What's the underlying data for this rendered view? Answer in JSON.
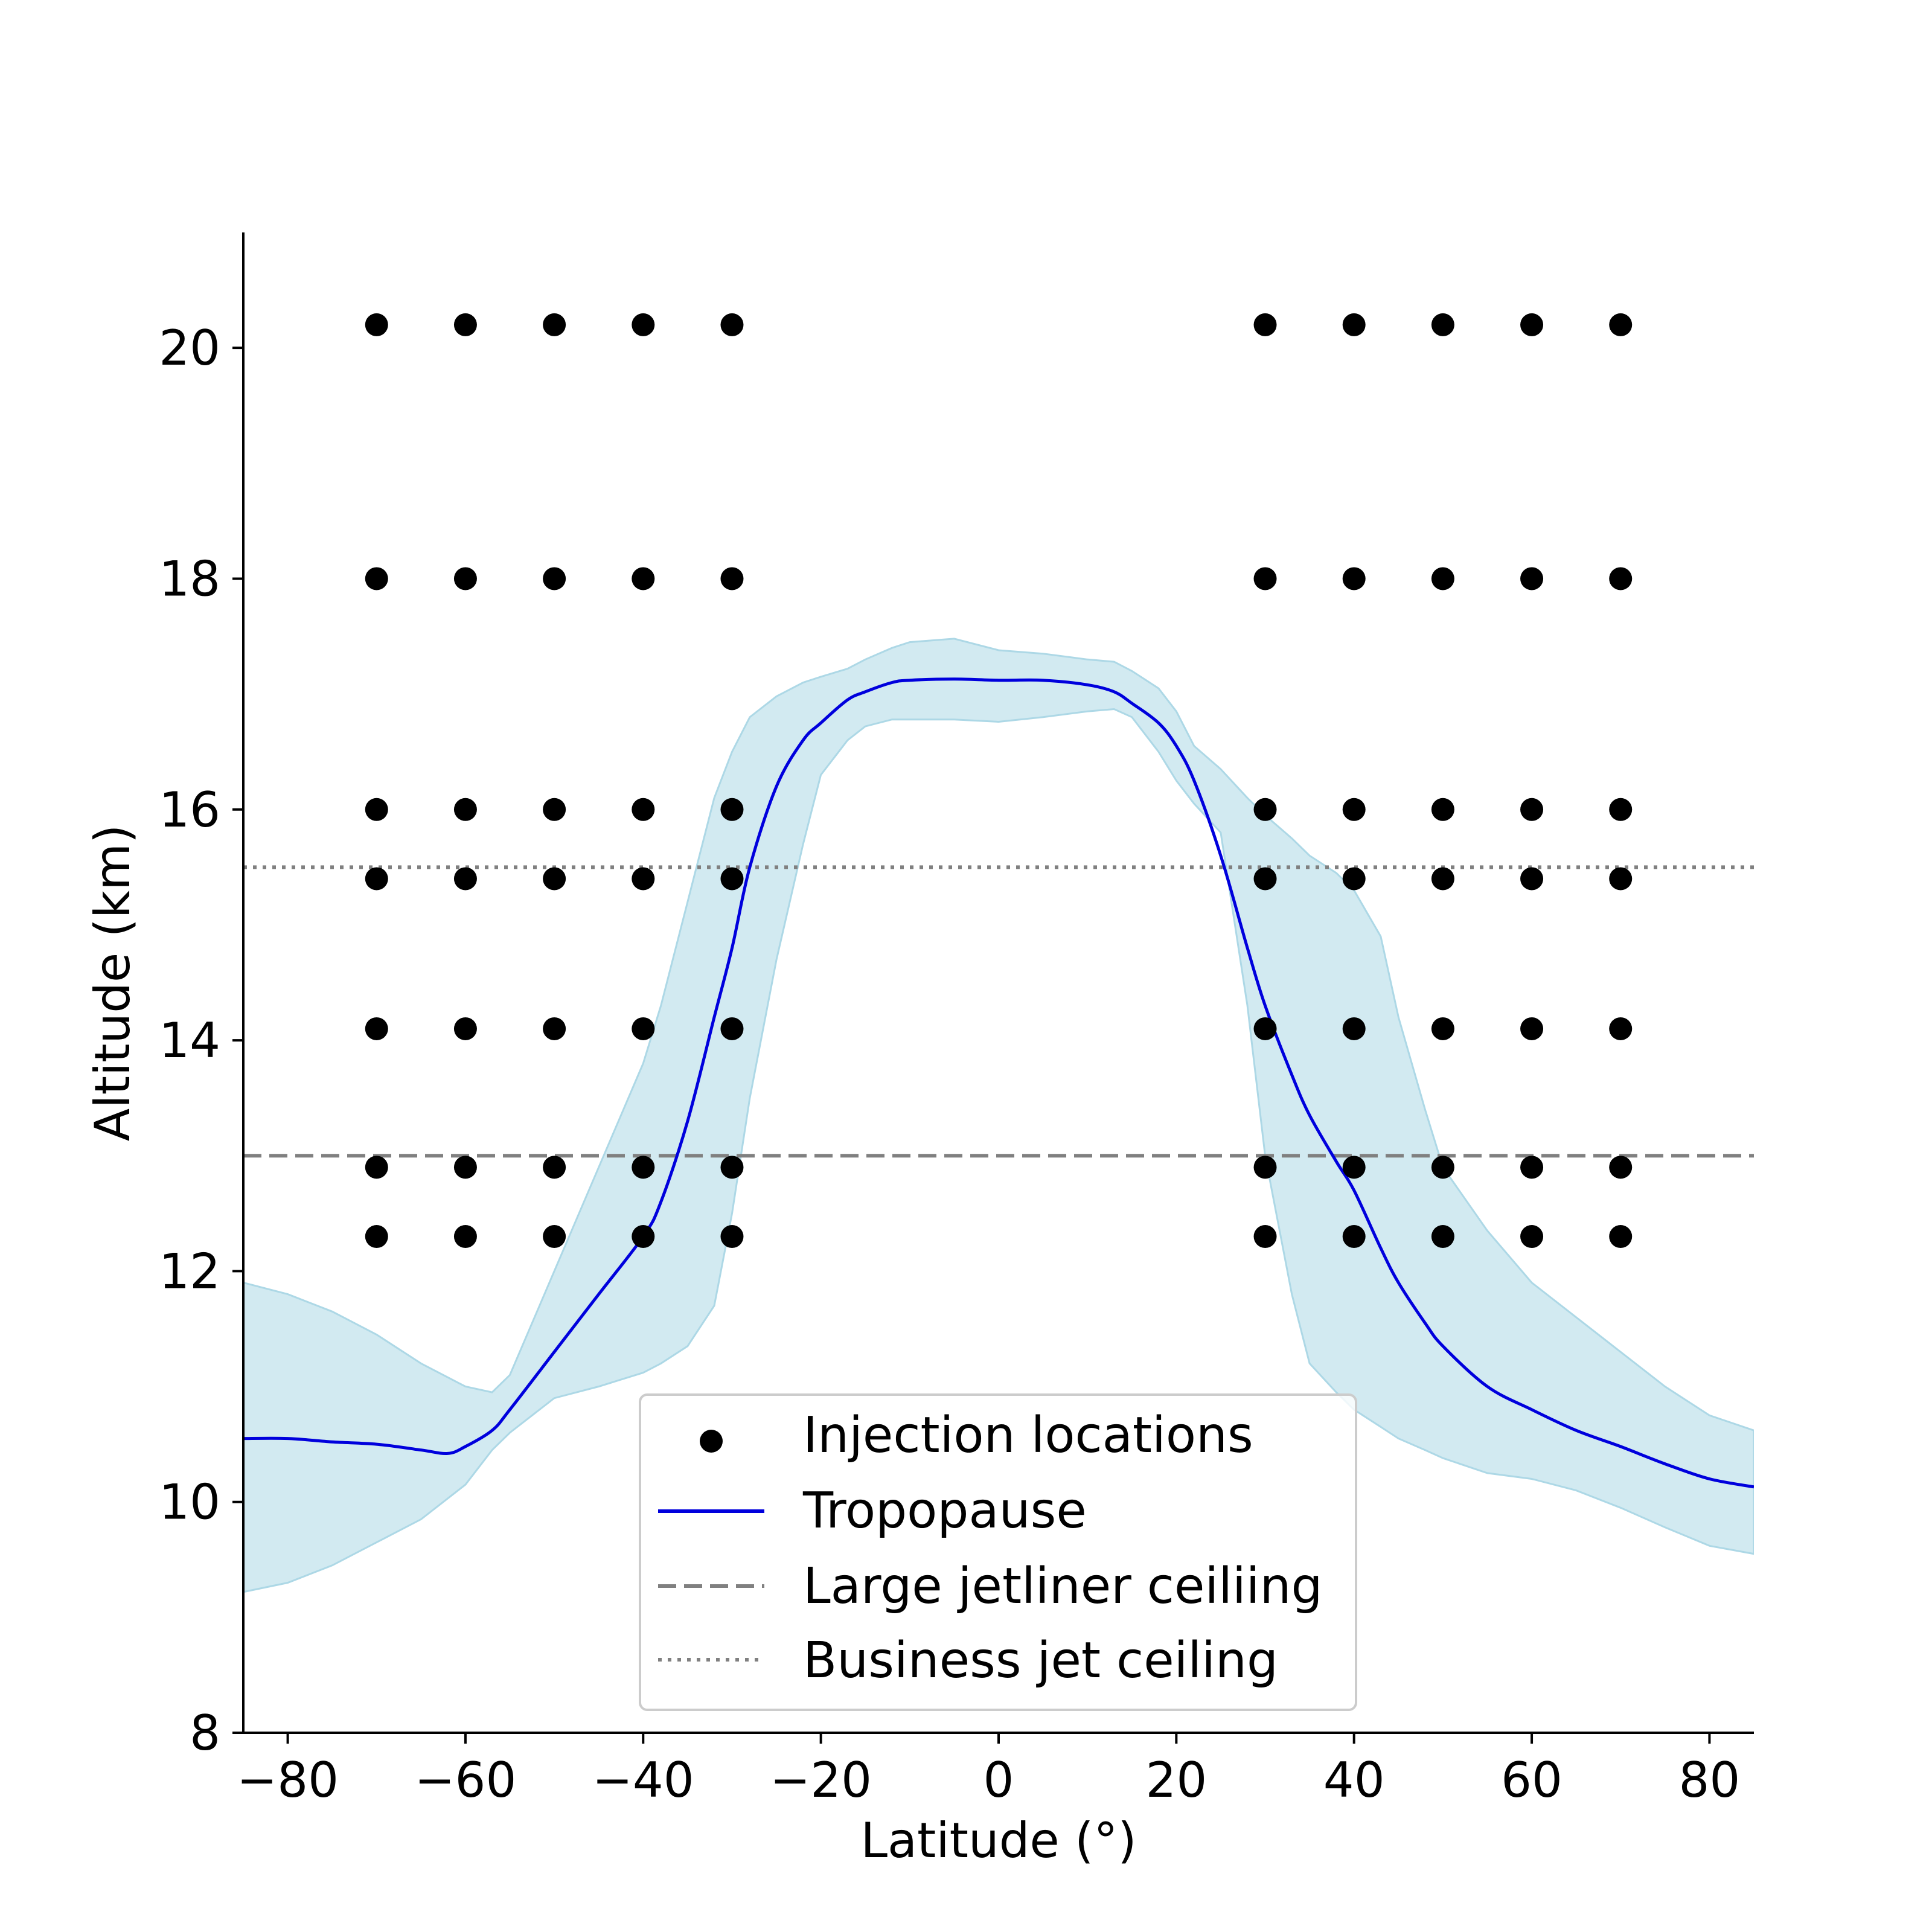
{
  "chart_data": {
    "type": "scatter",
    "xlabel": "Latitude (°)",
    "ylabel": "Altitude (km)",
    "xlim": [
      -85,
      85
    ],
    "ylim": [
      8,
      21
    ],
    "xticks": [
      -80,
      -60,
      -40,
      -20,
      0,
      20,
      40,
      60,
      80
    ],
    "xtick_labels": [
      "−80",
      "−60",
      "−40",
      "−20",
      "0",
      "20",
      "40",
      "60",
      "80"
    ],
    "yticks": [
      8,
      10,
      12,
      14,
      16,
      18,
      20
    ],
    "ytick_labels": [
      "8",
      "10",
      "12",
      "14",
      "16",
      "18",
      "20"
    ],
    "grid": false,
    "legend_position": "bottom-center",
    "colors": {
      "points": "#000000",
      "tropopause": "#0000dd",
      "band": "#add8e6",
      "reference_lines": "#808080"
    },
    "series": [
      {
        "name": "Injection locations",
        "kind": "scatter",
        "latitudes": [
          -70,
          -60,
          -50,
          -40,
          -30,
          30,
          40,
          50,
          60,
          70
        ],
        "altitudes": [
          12.3,
          12.9,
          14.1,
          15.4,
          16.0,
          18.0,
          20.2
        ]
      },
      {
        "name": "Tropopause",
        "kind": "line",
        "x": [
          -85,
          -80,
          -75,
          -70,
          -65,
          -62,
          -60,
          -57,
          -55,
          -50,
          -45,
          -40,
          -38,
          -35,
          -32,
          -30,
          -28,
          -25,
          -22,
          -20,
          -17,
          -15,
          -12,
          -10,
          -5,
          0,
          5,
          10,
          13,
          15,
          18,
          20,
          22,
          25,
          28,
          30,
          33,
          35,
          38,
          40,
          43,
          45,
          48,
          50,
          55,
          60,
          65,
          70,
          75,
          80,
          85
        ],
        "y": [
          10.55,
          10.55,
          10.52,
          10.5,
          10.45,
          10.42,
          10.48,
          10.62,
          10.8,
          11.3,
          11.8,
          12.3,
          12.6,
          13.3,
          14.2,
          14.8,
          15.5,
          16.2,
          16.6,
          16.75,
          16.95,
          17.02,
          17.1,
          17.12,
          17.13,
          17.12,
          17.12,
          17.08,
          17.02,
          16.92,
          16.75,
          16.55,
          16.25,
          15.6,
          14.8,
          14.3,
          13.7,
          13.35,
          12.95,
          12.7,
          12.2,
          11.9,
          11.55,
          11.35,
          11.0,
          10.8,
          10.62,
          10.48,
          10.33,
          10.2,
          10.13
        ]
      },
      {
        "name": "",
        "kind": "band",
        "x": [
          -85,
          -80,
          -75,
          -70,
          -65,
          -60,
          -57,
          -55,
          -50,
          -45,
          -40,
          -38,
          -35,
          -32,
          -30,
          -28,
          -25,
          -22,
          -20,
          -17,
          -15,
          -12,
          -10,
          -5,
          0,
          5,
          10,
          13,
          15,
          18,
          20,
          22,
          25,
          28,
          30,
          33,
          35,
          38,
          40,
          43,
          45,
          48,
          50,
          55,
          60,
          65,
          70,
          75,
          80,
          85
        ],
        "upper": [
          11.9,
          11.8,
          11.65,
          11.45,
          11.2,
          11.0,
          10.95,
          11.1,
          12.0,
          12.9,
          13.8,
          14.3,
          15.2,
          16.1,
          16.5,
          16.8,
          16.98,
          17.1,
          17.15,
          17.22,
          17.3,
          17.4,
          17.45,
          17.48,
          17.38,
          17.35,
          17.3,
          17.28,
          17.2,
          17.05,
          16.85,
          16.55,
          16.35,
          16.1,
          15.95,
          15.75,
          15.6,
          15.45,
          15.3,
          14.9,
          14.2,
          13.4,
          12.9,
          12.35,
          11.9,
          11.6,
          11.3,
          11.0,
          10.75,
          10.62
        ],
        "lower": [
          9.22,
          9.3,
          9.45,
          9.65,
          9.85,
          10.15,
          10.45,
          10.6,
          10.9,
          11.0,
          11.12,
          11.2,
          11.35,
          11.7,
          12.5,
          13.5,
          14.7,
          15.7,
          16.3,
          16.6,
          16.72,
          16.78,
          16.78,
          16.78,
          16.76,
          16.8,
          16.85,
          16.87,
          16.8,
          16.5,
          16.25,
          16.05,
          15.8,
          14.3,
          13.0,
          11.8,
          11.2,
          10.95,
          10.8,
          10.65,
          10.55,
          10.45,
          10.38,
          10.25,
          10.2,
          10.1,
          9.95,
          9.78,
          9.62,
          9.55
        ]
      }
    ],
    "reference_lines": [
      {
        "name": "Large jetliner ceiliing",
        "y": 13.0,
        "style": "dashed"
      },
      {
        "name": "Business jet ceiling",
        "y": 15.5,
        "style": "dotted"
      }
    ],
    "legend": [
      {
        "label": "Injection locations",
        "marker": "dot"
      },
      {
        "label": "Tropopause",
        "marker": "solid"
      },
      {
        "label": "Large jetliner ceiliing",
        "marker": "dashed"
      },
      {
        "label": "Business jet ceiling",
        "marker": "dotted"
      }
    ]
  }
}
